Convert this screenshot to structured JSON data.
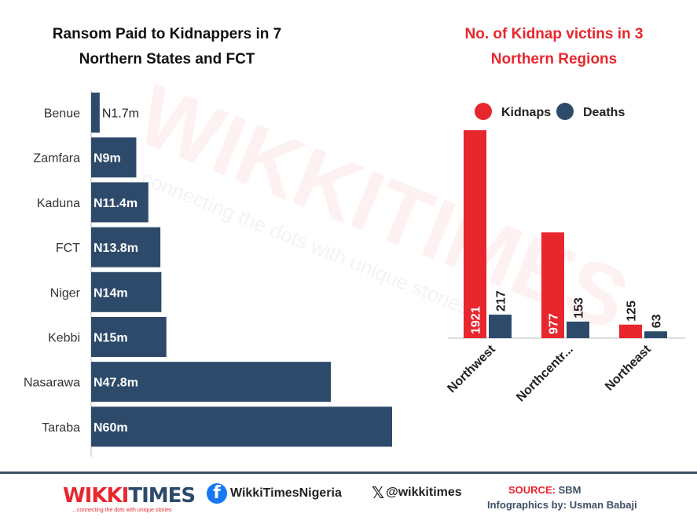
{
  "left_chart": {
    "title_line1": "Ransom Paid to Kidnappers in 7",
    "title_line2": "Northern States and FCT"
  },
  "right_chart": {
    "title_line1": "No. of Kidnap victins in 3",
    "title_line2": "Northern Regions"
  },
  "watermark": {
    "brand": "WIKKITIMES",
    "tagline": "...connecting the dots with unique stories"
  },
  "chart_data": [
    {
      "type": "bar",
      "orientation": "horizontal",
      "title": "Ransom Paid to Kidnappers in 7 Northern States and FCT",
      "categories": [
        "Benue",
        "Zamfara",
        "Kaduna",
        "FCT",
        "Niger",
        "Kebbi",
        "Nasarawa",
        "Taraba"
      ],
      "values": [
        1.7,
        9,
        11.4,
        13.8,
        14,
        15,
        47.8,
        60
      ],
      "labels": [
        "N1.7m",
        "N9m",
        "N11.4m",
        "N13.8m",
        "N14m",
        "N15m",
        "N47.8m",
        "N60m"
      ],
      "unit": "N million",
      "xlim": [
        0,
        60
      ],
      "color": "#2d4a6b",
      "grid": false
    },
    {
      "type": "bar",
      "orientation": "vertical",
      "title": "No. of Kidnap victins in 3 Northern Regions",
      "categories": [
        "Northwest",
        "Northcentr...",
        "Northeast"
      ],
      "series": [
        {
          "name": "Kidnaps",
          "values": [
            1921,
            977,
            125
          ],
          "color": "#e8262e"
        },
        {
          "name": "Deaths",
          "values": [
            217,
            153,
            63
          ],
          "color": "#2d4a6b"
        }
      ],
      "ylim": [
        0,
        1921
      ],
      "legend": "top",
      "grid": false
    }
  ],
  "footer": {
    "logo_part1": "WIKKI",
    "logo_part2": "TIMES",
    "logo_tagline": "...connecting the dots with unique stories",
    "facebook_handle": "WikkiTimesNigeria",
    "x_handle": "@wikkitimes",
    "source_label": "SOURCE:",
    "source_value": "SBM",
    "infographics_credit": "Infographics by: Usman Babaji"
  }
}
